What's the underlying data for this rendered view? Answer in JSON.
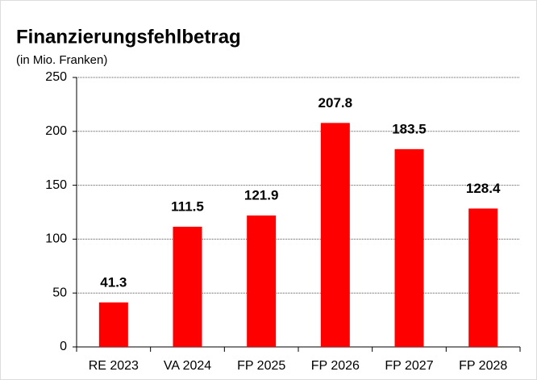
{
  "chart_data": {
    "type": "bar",
    "title": "Finanzierungsfehlbetrag",
    "subtitle": "(in Mio. Franken)",
    "categories": [
      "RE 2023",
      "VA 2024",
      "FP 2025",
      "FP 2026",
      "FP 2027",
      "FP 2028"
    ],
    "values": [
      41.3,
      111.5,
      121.9,
      207.8,
      183.5,
      128.4
    ],
    "color": "#ff0000",
    "ylim": [
      0,
      250
    ],
    "yticks": [
      0,
      50,
      100,
      150,
      200,
      250
    ],
    "grid": true
  }
}
